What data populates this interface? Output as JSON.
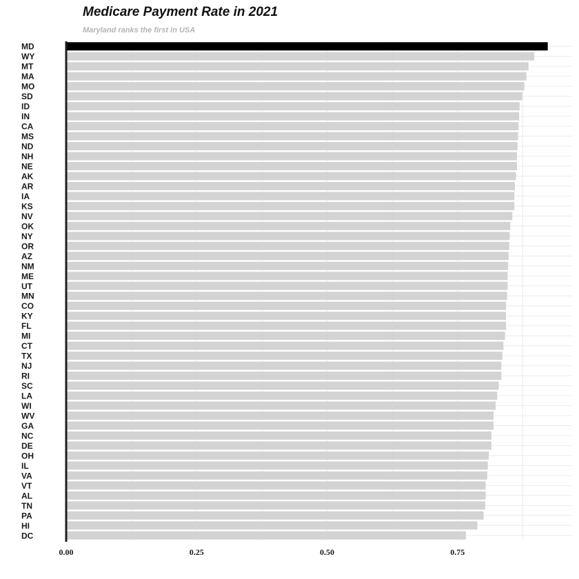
{
  "chart_data": {
    "type": "bar",
    "orientation": "horizontal",
    "title": "Medicare Payment Rate in 2021",
    "subtitle": "Maryland ranks the first in USA",
    "categories": [
      "MD",
      "WY",
      "MT",
      "MA",
      "MO",
      "SD",
      "ID",
      "IN",
      "CA",
      "MS",
      "ND",
      "NH",
      "NE",
      "AK",
      "AR",
      "IA",
      "KS",
      "NV",
      "OK",
      "NY",
      "OR",
      "AZ",
      "NM",
      "ME",
      "UT",
      "MN",
      "CO",
      "KY",
      "FL",
      "MI",
      "CT",
      "TX",
      "NJ",
      "RI",
      "SC",
      "LA",
      "WI",
      "WV",
      "GA",
      "NC",
      "DE",
      "OH",
      "IL",
      "VA",
      "VT",
      "AL",
      "TN",
      "PA",
      "HI",
      "DC"
    ],
    "values": [
      0.923,
      0.897,
      0.886,
      0.882,
      0.878,
      0.874,
      0.869,
      0.868,
      0.867,
      0.866,
      0.865,
      0.864,
      0.864,
      0.862,
      0.86,
      0.859,
      0.859,
      0.855,
      0.851,
      0.85,
      0.849,
      0.848,
      0.847,
      0.846,
      0.846,
      0.845,
      0.843,
      0.843,
      0.843,
      0.841,
      0.838,
      0.836,
      0.834,
      0.834,
      0.829,
      0.826,
      0.823,
      0.819,
      0.819,
      0.815,
      0.815,
      0.81,
      0.808,
      0.807,
      0.804,
      0.804,
      0.803,
      0.8,
      0.788,
      0.766
    ],
    "highlight": "MD",
    "highlight_color": "#000000",
    "bar_color": "#d3d3d3",
    "xticks": [
      0,
      0.25,
      0.5,
      0.75
    ],
    "xtick_labels": [
      "0.00",
      "0.25",
      "0.50",
      "0.75"
    ],
    "xlim": [
      0,
      0.97
    ],
    "xlabel": "",
    "ylabel": "",
    "grid": true,
    "legend": false
  }
}
